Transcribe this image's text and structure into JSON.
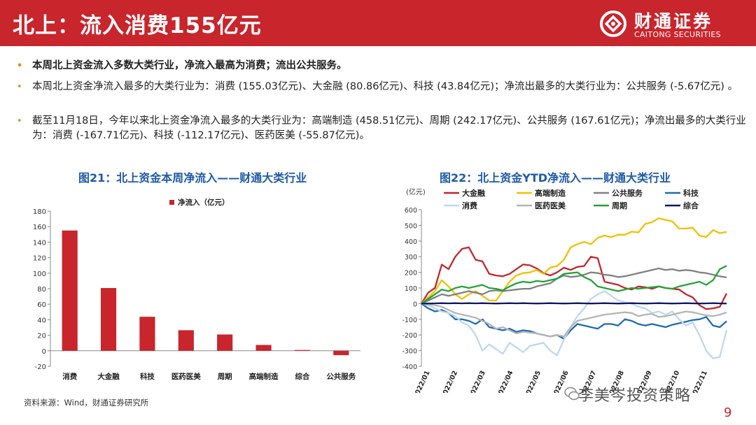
{
  "header": {
    "title": "北上：流入消费155亿元",
    "logo_cn": "财通证券",
    "logo_en": "CAITONG SECURITIES"
  },
  "bullets": [
    "本周北上资金流入多数大类行业，净流入最高为消费；流出公共服务。",
    "本周北上资金净流入最多的大类行业为：消费 (155.03亿元)、大金融 (80.86亿元)、科技 (43.84亿元)；净流出最多的大类行业为：公共服务 (-5.67亿元) 。",
    "截至11月18日，今年以来北上资金净流入最多的大类行业为：高端制造 (458.51亿元)、周期 (242.17亿元)、公共服务 (167.61亿元)；净流出最多的大类行业为：消费 (-167.71亿元)、科技 (-112.17亿元)、医药医美 (-55.87亿元)。"
  ],
  "colors": {
    "brand_red": "#c8252c",
    "title_blue": "#1f5aa6",
    "bullet_orange": "#e08a2b"
  },
  "chart_data": [
    {
      "type": "bar",
      "title": "图21：北上资金本周净流入——财通大类行业",
      "categories": [
        "消费",
        "大金融",
        "科技",
        "医药医美",
        "周期",
        "高端制造",
        "综合",
        "公共服务"
      ],
      "series": [
        {
          "name": "净流入（亿元）",
          "color": "#c8252c",
          "values": [
            155.03,
            80.86,
            43.84,
            26.5,
            21,
            7.5,
            1,
            -5.67
          ]
        }
      ],
      "yticks": [
        -20,
        0,
        20,
        40,
        60,
        80,
        100,
        120,
        140,
        160,
        180
      ],
      "ylim": [
        -20,
        180
      ],
      "legend": "top-center",
      "grid": false
    },
    {
      "type": "line",
      "title": "图22：北上资金YTD净流入——财通大类行业",
      "unit_label": "(亿元)",
      "xticks": [
        "2022/01",
        "2022/02",
        "2022/03",
        "2022/04",
        "2022/05",
        "2022/06",
        "2022/07",
        "2022/08",
        "2022/09",
        "2022/10",
        "2022/11"
      ],
      "yticks": [
        -400,
        -300,
        -200,
        -100,
        0,
        100,
        200,
        300,
        400,
        500,
        600
      ],
      "ylim": [
        -400,
        600
      ],
      "x_weeks": [
        0,
        1,
        2,
        3,
        4,
        5,
        6,
        7,
        8,
        9,
        10,
        11,
        12,
        13,
        14,
        15,
        16,
        17,
        18,
        19,
        20,
        21,
        22,
        23,
        24,
        25,
        26,
        27,
        28,
        29,
        30,
        31,
        32,
        33,
        34,
        35,
        36,
        37,
        38,
        39,
        40,
        41,
        42,
        43,
        44,
        45
      ],
      "legend": "top",
      "grid": false,
      "series": [
        {
          "name": "大金融",
          "color": "#c0282e",
          "values": [
            0,
            70,
            100,
            250,
            220,
            300,
            350,
            360,
            280,
            270,
            190,
            180,
            175,
            190,
            220,
            250,
            245,
            225,
            195,
            180,
            200,
            230,
            215,
            235,
            240,
            300,
            290,
            140,
            130,
            120,
            100,
            90,
            110,
            105,
            95,
            110,
            100,
            95,
            90,
            60,
            40,
            -10,
            -35,
            -30,
            -20,
            65
          ]
        },
        {
          "name": "高端制造",
          "color": "#f2c000",
          "values": [
            0,
            40,
            80,
            150,
            110,
            60,
            30,
            60,
            80,
            50,
            20,
            20,
            80,
            140,
            180,
            195,
            200,
            215,
            190,
            230,
            240,
            280,
            360,
            380,
            395,
            380,
            420,
            435,
            425,
            440,
            440,
            460,
            455,
            510,
            520,
            545,
            535,
            525,
            480,
            480,
            485,
            435,
            425,
            470,
            450,
            458.51
          ]
        },
        {
          "name": "公共服务",
          "color": "#808080",
          "values": [
            0,
            20,
            40,
            60,
            50,
            60,
            70,
            80,
            70,
            60,
            80,
            85,
            80,
            85,
            90,
            95,
            95,
            110,
            120,
            130,
            160,
            180,
            170,
            175,
            185,
            200,
            195,
            185,
            180,
            170,
            175,
            185,
            195,
            205,
            215,
            225,
            215,
            220,
            210,
            215,
            210,
            200,
            195,
            185,
            175,
            167.61
          ]
        },
        {
          "name": "科技",
          "color": "#1f6bb3",
          "values": [
            0,
            -30,
            -50,
            -40,
            -60,
            -100,
            -100,
            -110,
            -130,
            -100,
            -150,
            -160,
            -170,
            -160,
            -180,
            -170,
            -175,
            -190,
            -200,
            -210,
            -200,
            -225,
            -170,
            -130,
            -140,
            -150,
            -160,
            -130,
            -130,
            -140,
            -100,
            -110,
            -130,
            -140,
            -130,
            -140,
            -150,
            -135,
            -125,
            -115,
            -105,
            -100,
            -85,
            -140,
            -150,
            -112.17
          ]
        },
        {
          "name": "消费",
          "color": "#bcd8f0",
          "values": [
            0,
            -10,
            -30,
            -50,
            -60,
            -80,
            -120,
            -140,
            -200,
            -300,
            -260,
            -290,
            -320,
            -250,
            -280,
            -310,
            -270,
            -260,
            -250,
            -300,
            -330,
            -230,
            -150,
            -80,
            -30,
            30,
            60,
            80,
            50,
            20,
            10,
            0,
            -20,
            -30,
            -60,
            -50,
            -70,
            -50,
            -100,
            -140,
            -120,
            -200,
            -300,
            -350,
            -340,
            -167.71
          ]
        },
        {
          "name": "医药医美",
          "color": "#b5b5b5",
          "values": [
            0,
            -5,
            -10,
            -20,
            -40,
            -60,
            -70,
            -80,
            -90,
            -110,
            -130,
            -160,
            -150,
            -170,
            -190,
            -180,
            -185,
            -190,
            -200,
            -210,
            -200,
            -210,
            -150,
            -110,
            -100,
            -90,
            -80,
            -70,
            -65,
            -60,
            -55,
            -60,
            -80,
            -70,
            -65,
            -85,
            -80,
            -70,
            -60,
            -50,
            -55,
            -65,
            -75,
            -80,
            -70,
            -55.87
          ]
        },
        {
          "name": "周期",
          "color": "#24a339",
          "values": [
            0,
            30,
            60,
            90,
            80,
            100,
            110,
            100,
            110,
            120,
            100,
            95,
            85,
            110,
            130,
            140,
            135,
            145,
            140,
            150,
            160,
            190,
            195,
            200,
            170,
            150,
            110,
            100,
            90,
            80,
            90,
            100,
            95,
            100,
            105,
            110,
            100,
            95,
            110,
            120,
            130,
            140,
            120,
            150,
            220,
            242.17
          ]
        },
        {
          "name": "综合",
          "color": "#10156b",
          "values": [
            0,
            1,
            2,
            3,
            2,
            3,
            2,
            3,
            2,
            3,
            2,
            1,
            2,
            3,
            2,
            3,
            2,
            1,
            2,
            3,
            2,
            1,
            2,
            3,
            2,
            1,
            2,
            3,
            2,
            1,
            2,
            3,
            2,
            1,
            2,
            3,
            2,
            1,
            2,
            3,
            2,
            1,
            2,
            3,
            2,
            1
          ]
        }
      ]
    }
  ],
  "source": "资料来源：Wind，财通证券研究所",
  "watermark": "李美岑投资策略",
  "page_number": "9"
}
